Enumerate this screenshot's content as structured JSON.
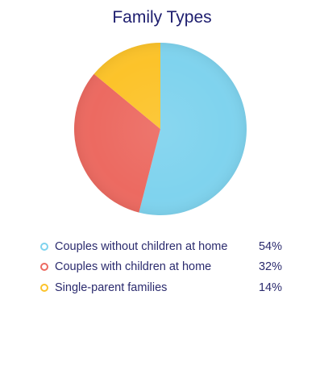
{
  "chart_data": {
    "type": "pie",
    "title": "Family Types",
    "slices": [
      {
        "label": "Couples without children at home",
        "value": 54,
        "display": "54%",
        "color": "#7fd3ee"
      },
      {
        "label": "Couples with children at home",
        "value": 32,
        "display": "32%",
        "color": "#ec6a61"
      },
      {
        "label": "Single-parent families",
        "value": 14,
        "display": "14%",
        "color": "#fcc32a"
      }
    ],
    "legend_position": "bottom"
  }
}
